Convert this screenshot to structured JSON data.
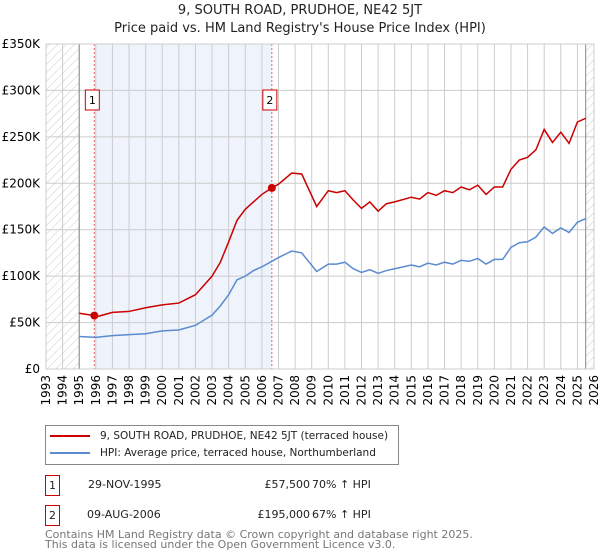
{
  "title": "9, SOUTH ROAD, PRUDHOE, NE42 5JT",
  "subtitle": "Price paid vs. HM Land Registry's House Price Index (HPI)",
  "chart_data": {
    "type": "line",
    "title": "9, SOUTH ROAD, PRUDHOE, NE42 5JT",
    "subtitle": "Price paid vs. HM Land Registry's House Price Index (HPI)",
    "xlim": [
      1993,
      2026
    ],
    "ylim": [
      0,
      350000
    ],
    "y_ticks": [
      0,
      50000,
      100000,
      150000,
      200000,
      250000,
      300000,
      350000
    ],
    "y_tick_labels": [
      "£0",
      "£50K",
      "£100K",
      "£150K",
      "£200K",
      "£250K",
      "£300K",
      "£350K"
    ],
    "x_tick_labels": [
      "1993",
      "1994",
      "1995",
      "1996",
      "1997",
      "1998",
      "1999",
      "2000",
      "2001",
      "2002",
      "2003",
      "2004",
      "2005",
      "2006",
      "2007",
      "2008",
      "2009",
      "2010",
      "2011",
      "2012",
      "2013",
      "2014",
      "2015",
      "2016",
      "2017",
      "2018",
      "2019",
      "2020",
      "2021",
      "2022",
      "2023",
      "2024",
      "2025",
      "2026"
    ],
    "grid": true,
    "series": [
      {
        "name": "9, SOUTH ROAD, PRUDHOE, NE42 5JT (terraced house)",
        "color": "#cc0000",
        "x": [
          1995,
          1995.9,
          1996,
          1997,
          1998,
          1999,
          2000,
          2001,
          2002,
          2003,
          2003.5,
          2004,
          2004.5,
          2005,
          2005.5,
          2006,
          2006.6,
          2007,
          2007.8,
          2008.4,
          2009.3,
          2010,
          2010.5,
          2011,
          2011.5,
          2012,
          2012.5,
          2013,
          2013.5,
          2014,
          2015,
          2015.5,
          2016,
          2016.5,
          2017,
          2017.5,
          2018,
          2018.5,
          2019,
          2019.5,
          2020,
          2020.5,
          2021,
          2021.5,
          2022,
          2022.5,
          2023,
          2023.5,
          2024,
          2024.5,
          2025,
          2025.5
        ],
        "y": [
          60000,
          57500,
          56000,
          61000,
          62000,
          66000,
          69000,
          71000,
          80000,
          100000,
          115000,
          137000,
          160000,
          172000,
          180000,
          188000,
          195000,
          199000,
          211000,
          210000,
          175000,
          192000,
          190000,
          192000,
          182000,
          173000,
          180000,
          170000,
          178000,
          180000,
          185000,
          183000,
          190000,
          187000,
          192000,
          190000,
          196000,
          193000,
          198000,
          188000,
          196000,
          196000,
          215000,
          225000,
          228000,
          236000,
          258000,
          244000,
          255000,
          243000,
          266000,
          270000
        ]
      },
      {
        "name": "HPI: Average price, terraced house, Northumberland",
        "color": "#5b8bd0",
        "x": [
          1995,
          1996,
          1997,
          1998,
          1999,
          2000,
          2001,
          2002,
          2003,
          2003.5,
          2004,
          2004.5,
          2005,
          2005.5,
          2006,
          2006.6,
          2007,
          2007.8,
          2008.4,
          2009.3,
          2010,
          2010.5,
          2011,
          2011.5,
          2012,
          2012.5,
          2013,
          2013.5,
          2014,
          2015,
          2015.5,
          2016,
          2016.5,
          2017,
          2017.5,
          2018,
          2018.5,
          2019,
          2019.5,
          2020,
          2020.5,
          2021,
          2021.5,
          2022,
          2022.5,
          2023,
          2023.5,
          2024,
          2024.5,
          2025,
          2025.5
        ],
        "y": [
          35000,
          34000,
          36000,
          37000,
          38000,
          41000,
          42000,
          47000,
          58000,
          68000,
          80000,
          96000,
          100000,
          106000,
          110000,
          116000,
          120000,
          127000,
          125000,
          105000,
          113000,
          113000,
          115000,
          108000,
          104000,
          107000,
          103000,
          106000,
          108000,
          112000,
          110000,
          114000,
          112000,
          115000,
          113000,
          117000,
          116000,
          119000,
          113000,
          118000,
          118000,
          131000,
          136000,
          137000,
          142000,
          153000,
          146000,
          152000,
          147000,
          158000,
          162000
        ]
      }
    ],
    "sales": [
      {
        "label": "1",
        "x": 1995.91,
        "y": 57500
      },
      {
        "label": "2",
        "x": 2006.6,
        "y": 195000
      }
    ],
    "legend_position": "below"
  },
  "legend": {
    "items": [
      {
        "label": "9, SOUTH ROAD, PRUDHOE, NE42 5JT (terraced house)",
        "color": "#cc0000"
      },
      {
        "label": "HPI: Average price, terraced house, Northumberland",
        "color": "#5b8bd0"
      }
    ]
  },
  "transactions": [
    {
      "num": "1",
      "date": "29-NOV-1995",
      "price": "£57,500",
      "hpi": "70% ↑ HPI"
    },
    {
      "num": "2",
      "date": "09-AUG-2006",
      "price": "£195,000",
      "hpi": "67% ↑ HPI"
    }
  ],
  "footer": {
    "line1": "Contains HM Land Registry data © Crown copyright and database right 2025.",
    "line2": "This data is licensed under the Open Government Licence v3.0."
  }
}
